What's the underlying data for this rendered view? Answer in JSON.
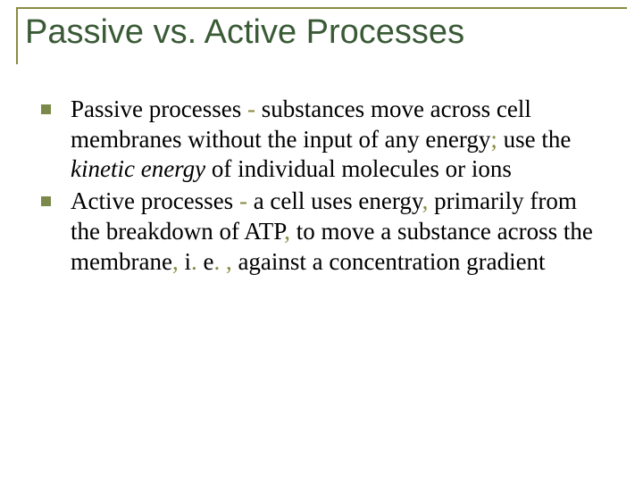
{
  "colors": {
    "title_border": "#8a8a42",
    "title_text": "#3a5a36",
    "bullet_marker": "#7b8a4a",
    "body_text": "#000000",
    "separator": "#8a8a42",
    "background": "#ffffff"
  },
  "typography": {
    "title_fontsize": 38,
    "title_fontweight": 400,
    "body_fontsize": 27,
    "body_fontfamily": "Times New Roman"
  },
  "title": "Passive vs. Active Processes",
  "bullets": [
    {
      "lead": "Passive processes ",
      "sep": "- ",
      "run1": "substances move across   cell membranes without the input of any energy",
      "punct1": "; ",
      "run2": "use the ",
      "ital": "kinetic energy",
      "run3": " of individual molecules or ions"
    },
    {
      "lead": "Active processes ",
      "sep": "- ",
      "run1": "a cell uses energy",
      "punct1": ", ",
      "run2": "primarily from the breakdown of ATP",
      "punct2": ", ",
      "run3": "to move a substance across the membrane",
      "punct3": ", ",
      "run4": "i",
      "punct4": ". ",
      "run5": "e",
      "punct5": ". , ",
      "run6": "against a concentration gradient"
    }
  ]
}
